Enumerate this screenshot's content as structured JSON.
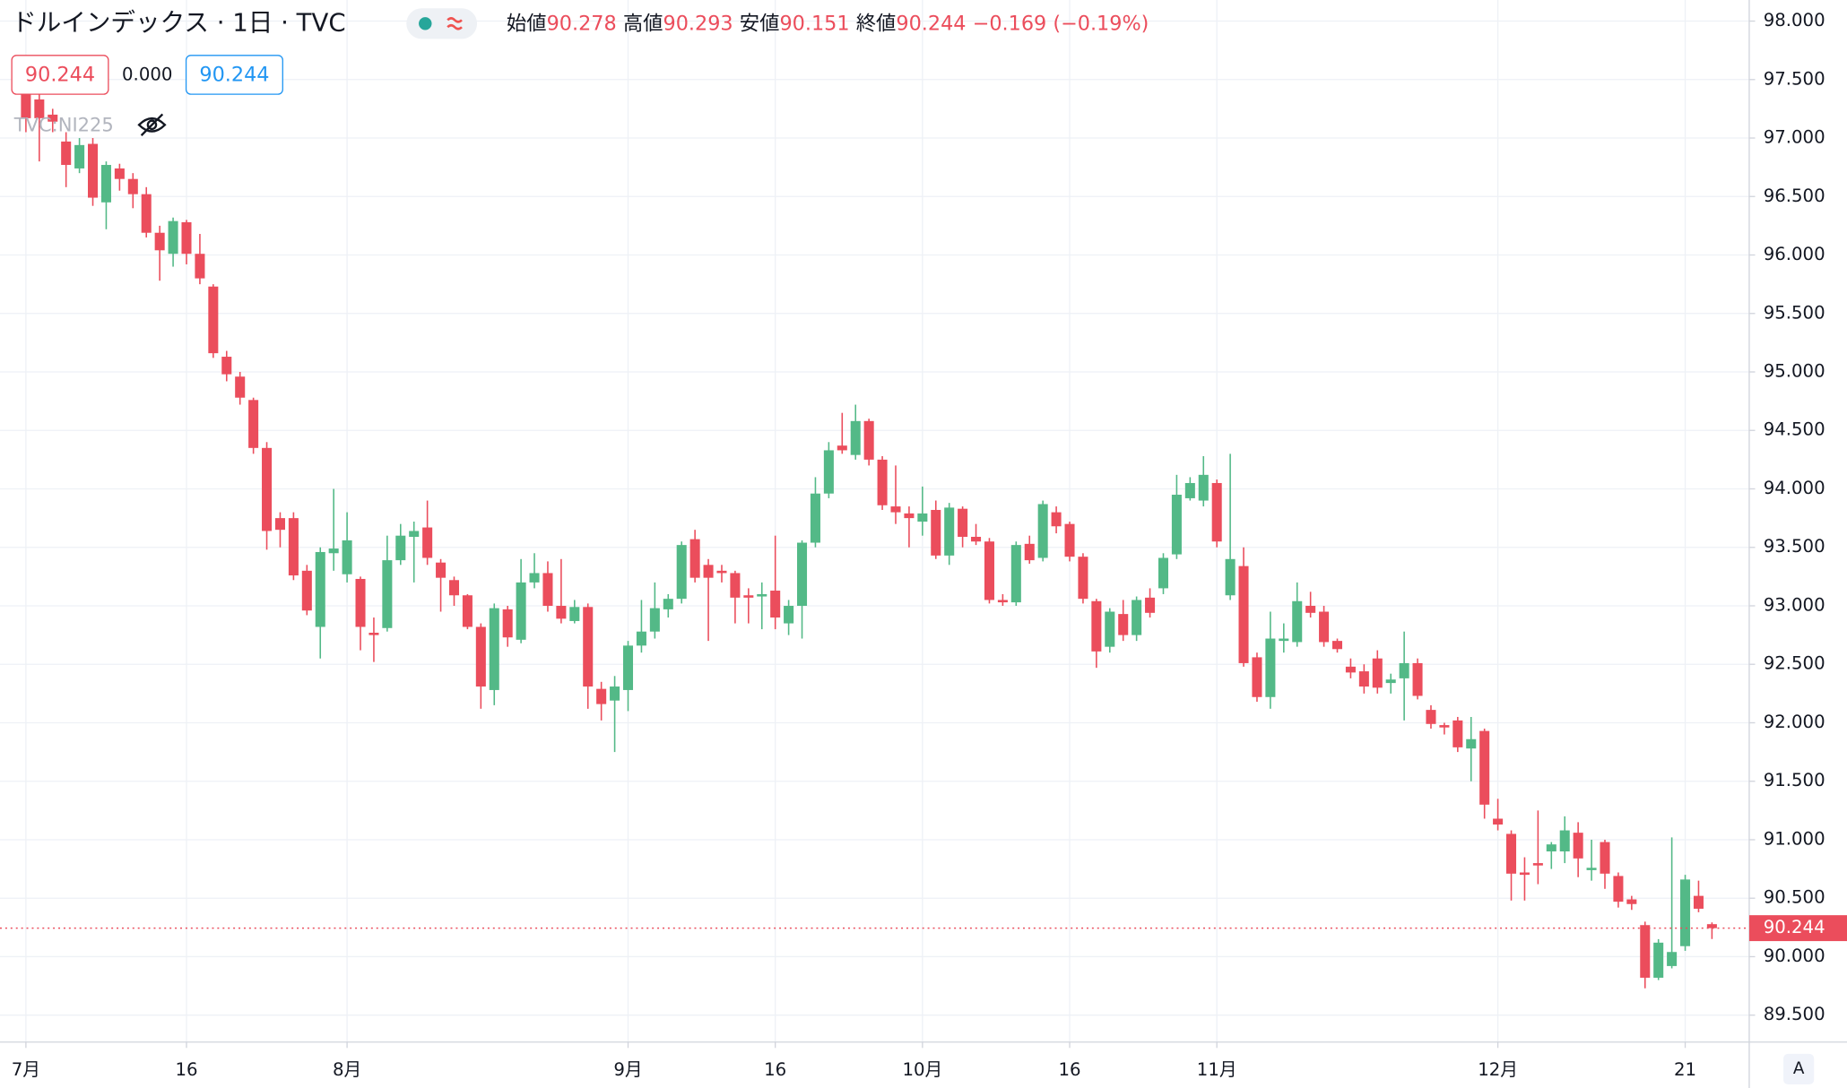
{
  "chart_data": {
    "type": "candlestick",
    "title": "ドルインデックス · 1日 · TVC",
    "ohlc_labels": [
      "始値",
      "高値",
      "安値",
      "終値"
    ],
    "change_label": "−0.169 (−0.19%)",
    "up_color": "#53b987",
    "down_color": "#eb4d5c",
    "categories": [
      "7月",
      null,
      null,
      null,
      null,
      null,
      null,
      null,
      null,
      null,
      null,
      null,
      "16",
      null,
      null,
      null,
      null,
      null,
      null,
      null,
      null,
      null,
      null,
      null,
      "8月",
      null,
      null,
      null,
      null,
      null,
      null,
      null,
      null,
      null,
      null,
      null,
      null,
      null,
      null,
      null,
      null,
      null,
      null,
      null,
      null,
      "9月",
      null,
      null,
      null,
      null,
      null,
      null,
      null,
      null,
      null,
      null,
      "16",
      null,
      null,
      null,
      null,
      null,
      null,
      null,
      null,
      null,
      null,
      "10月",
      null,
      null,
      null,
      null,
      null,
      null,
      null,
      null,
      null,
      null,
      "16",
      null,
      null,
      null,
      null,
      null,
      null,
      null,
      null,
      null,
      null,
      "11月",
      null,
      null,
      null,
      null,
      null,
      null,
      null,
      null,
      null,
      null,
      null,
      null,
      null,
      null,
      null,
      null,
      null,
      null,
      null,
      null,
      "12月",
      null,
      null,
      null,
      null,
      null,
      null,
      null,
      null,
      null,
      null,
      null,
      null,
      null,
      "21",
      null,
      null
    ],
    "open": [
      97.38,
      97.33,
      97.2,
      96.97,
      96.74,
      96.95,
      96.45,
      96.74,
      96.65,
      96.52,
      96.19,
      96.01,
      96.28,
      96.01,
      95.73,
      95.13,
      94.96,
      94.76,
      94.35,
      93.75,
      93.75,
      93.3,
      92.82,
      93.45,
      93.27,
      93.23,
      92.77,
      92.81,
      93.39,
      93.59,
      93.67,
      93.37,
      93.22,
      93.09,
      92.82,
      92.28,
      92.97,
      92.71,
      93.2,
      93.28,
      93.0,
      92.87,
      92.99,
      92.29,
      92.19,
      92.28,
      92.66,
      92.78,
      92.97,
      93.06,
      93.57,
      93.35,
      93.3,
      93.28,
      93.09,
      93.08,
      93.13,
      92.85,
      93.0,
      93.54,
      93.96,
      94.37,
      94.29,
      94.58,
      94.25,
      93.85,
      93.79,
      93.72,
      93.82,
      93.43,
      93.83,
      93.59,
      93.55,
      93.05,
      93.03,
      93.53,
      93.41,
      93.8,
      93.7,
      93.42,
      93.04,
      92.65,
      92.93,
      92.75,
      93.07,
      93.15,
      93.44,
      93.92,
      93.9,
      94.05,
      93.09,
      93.34,
      92.56,
      92.22,
      92.7,
      92.69,
      93.0,
      92.95,
      92.7,
      92.48,
      92.44,
      92.55,
      92.34,
      92.38,
      92.51,
      92.11,
      91.98,
      92.02,
      91.78,
      91.93,
      91.18,
      91.05,
      90.72,
      90.8,
      90.9,
      90.9,
      91.06,
      90.74,
      90.98,
      90.69,
      90.49,
      90.27,
      89.82,
      89.92,
      90.09,
      90.52,
      90.278
    ],
    "high": [
      97.45,
      97.4,
      97.25,
      97.05,
      97.0,
      97.0,
      96.8,
      96.78,
      96.7,
      96.58,
      96.25,
      96.32,
      96.3,
      96.18,
      95.75,
      95.18,
      95.0,
      94.78,
      94.4,
      93.8,
      93.8,
      93.35,
      93.5,
      94.0,
      93.8,
      93.25,
      92.9,
      93.6,
      93.7,
      93.72,
      93.9,
      93.4,
      93.25,
      93.1,
      92.85,
      93.02,
      93.0,
      93.4,
      93.45,
      93.38,
      93.4,
      93.05,
      93.02,
      92.35,
      92.4,
      92.7,
      93.05,
      93.2,
      93.1,
      93.55,
      93.65,
      93.4,
      93.35,
      93.3,
      93.15,
      93.2,
      93.6,
      93.05,
      93.56,
      94.1,
      94.4,
      94.65,
      94.72,
      94.6,
      94.28,
      94.2,
      93.85,
      94.02,
      93.9,
      93.88,
      93.85,
      93.7,
      93.58,
      93.1,
      93.55,
      93.6,
      93.9,
      93.85,
      93.72,
      93.45,
      93.06,
      92.98,
      93.05,
      93.08,
      93.15,
      93.45,
      94.12,
      94.1,
      94.28,
      94.08,
      94.3,
      93.5,
      92.6,
      92.95,
      92.85,
      93.2,
      93.12,
      93.0,
      92.72,
      92.55,
      92.5,
      92.62,
      92.42,
      92.78,
      92.55,
      92.15,
      92.0,
      92.05,
      92.05,
      91.95,
      91.35,
      91.08,
      90.85,
      91.25,
      90.98,
      91.2,
      91.15,
      91.0,
      91.0,
      90.72,
      90.52,
      90.3,
      90.15,
      91.02,
      90.7,
      90.65,
      90.293
    ],
    "low": [
      97.05,
      96.8,
      97.05,
      96.58,
      96.7,
      96.42,
      96.22,
      96.55,
      96.4,
      96.15,
      95.78,
      95.9,
      95.92,
      95.75,
      95.12,
      94.92,
      94.72,
      94.3,
      93.48,
      93.5,
      93.22,
      92.92,
      92.55,
      93.3,
      93.2,
      92.62,
      92.52,
      92.78,
      93.35,
      93.2,
      93.35,
      92.95,
      93.0,
      92.8,
      92.12,
      92.15,
      92.65,
      92.68,
      93.15,
      92.95,
      92.85,
      92.85,
      92.12,
      92.02,
      91.75,
      92.1,
      92.6,
      92.72,
      92.9,
      93.02,
      93.2,
      92.7,
      93.2,
      92.85,
      92.85,
      92.8,
      92.8,
      92.75,
      92.72,
      93.5,
      93.92,
      94.3,
      94.25,
      94.2,
      93.82,
      93.7,
      93.5,
      93.6,
      93.4,
      93.35,
      93.5,
      93.52,
      93.02,
      93.0,
      93.0,
      93.36,
      93.38,
      93.62,
      93.38,
      93.02,
      92.47,
      92.6,
      92.7,
      92.7,
      92.9,
      93.1,
      93.4,
      93.9,
      93.85,
      93.5,
      93.05,
      92.48,
      92.18,
      92.12,
      92.6,
      92.65,
      92.9,
      92.65,
      92.6,
      92.38,
      92.25,
      92.25,
      92.25,
      92.02,
      92.2,
      91.95,
      91.9,
      91.75,
      91.5,
      91.18,
      91.08,
      90.48,
      90.48,
      90.62,
      90.75,
      90.8,
      90.68,
      90.65,
      90.58,
      90.42,
      90.4,
      89.73,
      89.8,
      89.9,
      90.05,
      90.38,
      90.151
    ],
    "close": [
      97.17,
      97.17,
      97.14,
      96.77,
      96.94,
      96.49,
      96.77,
      96.65,
      96.52,
      96.19,
      96.04,
      96.29,
      96.01,
      95.8,
      95.16,
      94.98,
      94.78,
      94.35,
      93.64,
      93.65,
      93.26,
      92.96,
      93.46,
      93.49,
      93.56,
      92.82,
      92.75,
      93.39,
      93.6,
      93.64,
      93.41,
      93.24,
      93.09,
      92.82,
      92.31,
      92.98,
      92.73,
      93.2,
      93.28,
      93.0,
      92.89,
      92.99,
      92.31,
      92.16,
      92.31,
      92.66,
      92.78,
      92.98,
      93.06,
      93.52,
      93.24,
      93.24,
      93.28,
      93.07,
      93.07,
      93.1,
      92.9,
      93.0,
      93.54,
      93.96,
      94.33,
      94.33,
      94.58,
      94.25,
      93.86,
      93.8,
      93.75,
      93.79,
      93.43,
      93.84,
      93.59,
      93.55,
      93.05,
      93.03,
      93.52,
      93.39,
      93.87,
      93.68,
      93.42,
      93.06,
      92.61,
      92.95,
      92.75,
      93.05,
      92.94,
      93.41,
      93.95,
      94.05,
      94.12,
      93.55,
      93.4,
      92.51,
      92.22,
      92.72,
      92.72,
      93.04,
      92.94,
      92.69,
      92.63,
      92.43,
      92.31,
      92.3,
      92.37,
      92.51,
      92.23,
      91.99,
      91.96,
      91.79,
      91.86,
      91.3,
      91.13,
      90.71,
      90.7,
      90.78,
      90.96,
      91.08,
      90.84,
      90.76,
      90.71,
      90.47,
      90.45,
      89.82,
      90.12,
      90.04,
      90.66,
      90.41,
      90.244
    ],
    "ylim": [
      89.27,
      98.18
    ],
    "yticks": [
      {
        "value": 89.5,
        "label": "89.500"
      },
      {
        "value": 90,
        "label": "90.000"
      },
      {
        "value": 90.5,
        "label": "90.500"
      },
      {
        "value": 91,
        "label": "91.000"
      },
      {
        "value": 91.5,
        "label": "91.500"
      },
      {
        "value": 92,
        "label": "92.000"
      },
      {
        "value": 92.5,
        "label": "92.500"
      },
      {
        "value": 93,
        "label": "93.000"
      },
      {
        "value": 93.5,
        "label": "93.500"
      },
      {
        "value": 94,
        "label": "94.000"
      },
      {
        "value": 94.5,
        "label": "94.500"
      },
      {
        "value": 95,
        "label": "95.000"
      },
      {
        "value": 95.5,
        "label": "95.500"
      },
      {
        "value": 96,
        "label": "96.000"
      },
      {
        "value": 96.5,
        "label": "96.500"
      },
      {
        "value": 97,
        "label": "97.000"
      },
      {
        "value": 97.5,
        "label": "97.500"
      },
      {
        "value": 98,
        "label": "98.000"
      }
    ],
    "grid": true,
    "last_price_line": true
  },
  "toolbar": {
    "bid": "90.244",
    "spread": "0.000",
    "ask": "90.244",
    "compare_symbol": "TVC:NI225",
    "auto_button": "A"
  }
}
